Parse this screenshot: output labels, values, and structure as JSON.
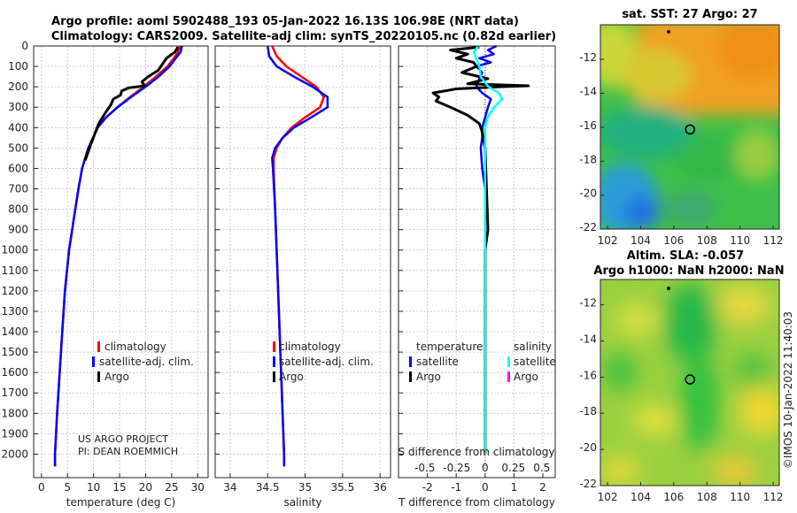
{
  "titles": {
    "line1": "Argo profile: aoml 5902488_193 05-Jan-2022 16.13S 106.98E (NRT data)",
    "line2": "Climatology: CARS2009. Satellite-adj clim: synTS_20220105.nc (0.82d earlier)"
  },
  "credit": "©IMOS 10-Jan-2022 11:40:03",
  "project": {
    "line1": "US ARGO PROJECT",
    "line2": "PI: DEAN ROEMMICH"
  },
  "colors": {
    "climatology": "#ff0000",
    "satellite": "#0000ff",
    "argo": "#000000",
    "sal_satellite": "#00ffff",
    "sal_argo": "#ff00ff",
    "grid": "#b8c0e0"
  },
  "chart_data": [
    {
      "type": "line",
      "xlabel": "temperature (deg C)",
      "ylabel": "",
      "xlim": [
        -1.5,
        32
      ],
      "ylim": [
        2115,
        0
      ],
      "xticks": [
        0,
        5,
        10,
        15,
        20,
        25,
        30
      ],
      "yticks": [
        0,
        100,
        200,
        300,
        400,
        500,
        600,
        700,
        800,
        900,
        1000,
        1100,
        1200,
        1300,
        1400,
        1500,
        1600,
        1700,
        1800,
        1900,
        2000
      ],
      "legend": [
        "climatology",
        "satellite-adj. clim.",
        "Argo"
      ],
      "series": [
        {
          "name": "climatology",
          "color": "#ff0000",
          "depth": [
            0,
            30,
            60,
            100,
            150,
            200,
            250,
            300,
            350,
            400,
            500,
            600,
            700,
            800,
            1000,
            1200,
            1400,
            1600,
            1800,
            2000,
            2060
          ],
          "values": [
            26.6,
            26.2,
            25.4,
            24.2,
            22.0,
            19.6,
            17.0,
            14.6,
            12.4,
            10.8,
            9.0,
            7.8,
            7.1,
            6.5,
            5.3,
            4.5,
            4.0,
            3.5,
            3.0,
            2.6,
            2.6
          ]
        },
        {
          "name": "satellite-adj. clim.",
          "color": "#0000ff",
          "depth": [
            0,
            30,
            60,
            100,
            150,
            200,
            250,
            300,
            350,
            400,
            500,
            600,
            700,
            800,
            1000,
            1200,
            1400,
            1600,
            1800,
            2000,
            2060
          ],
          "values": [
            27.0,
            26.7,
            25.8,
            24.6,
            22.5,
            20.0,
            17.2,
            14.6,
            12.4,
            10.8,
            9.0,
            7.8,
            7.1,
            6.5,
            5.3,
            4.5,
            4.0,
            3.5,
            3.0,
            2.6,
            2.6
          ]
        },
        {
          "name": "Argo",
          "color": "#000000",
          "depth": [
            5,
            30,
            60,
            90,
            120,
            150,
            175,
            195,
            205,
            220,
            240,
            260,
            290,
            330,
            380,
            420,
            480,
            560
          ],
          "values": [
            26.2,
            25.6,
            24.0,
            23.2,
            22.4,
            20.5,
            19.3,
            19.8,
            16.8,
            15.4,
            15.2,
            13.8,
            13.3,
            12.2,
            11.0,
            10.4,
            9.5,
            8.4
          ]
        }
      ]
    },
    {
      "type": "line",
      "xlabel": "salinity",
      "xlim": [
        33.8,
        36.14
      ],
      "ylim": [
        2115,
        0
      ],
      "xticks": [
        34,
        34.5,
        35,
        35.5,
        36
      ],
      "legend": [
        "climatology",
        "satellite-adj. clim.",
        "Argo"
      ],
      "series": [
        {
          "name": "climatology",
          "color": "#ff0000",
          "depth": [
            0,
            50,
            100,
            150,
            200,
            250,
            300,
            350,
            400,
            450,
            500,
            550,
            600,
            800,
            1000,
            1500,
            2000,
            2060
          ],
          "values": [
            34.56,
            34.62,
            34.75,
            34.95,
            35.15,
            35.25,
            35.2,
            35.0,
            34.82,
            34.7,
            34.62,
            34.58,
            34.58,
            34.6,
            34.62,
            34.67,
            34.72,
            34.72
          ]
        },
        {
          "name": "satellite-adj. clim.",
          "color": "#0000ff",
          "depth": [
            0,
            50,
            100,
            150,
            200,
            250,
            300,
            350,
            400,
            450,
            500,
            550,
            600,
            800,
            1000,
            1500,
            2000,
            2060
          ],
          "values": [
            34.5,
            34.52,
            34.62,
            34.85,
            35.1,
            35.3,
            35.3,
            35.08,
            34.85,
            34.7,
            34.6,
            34.56,
            34.57,
            34.6,
            34.62,
            34.67,
            34.72,
            34.72
          ]
        }
      ]
    },
    {
      "type": "line",
      "xlabel": "T difference from climatology",
      "x2label": "S difference from climatology",
      "xlim": [
        -3.0,
        2.43
      ],
      "ylim": [
        2115,
        0
      ],
      "xticks": [
        -2,
        -1,
        0,
        1,
        2
      ],
      "x2ticks": [
        -0.5,
        -0.25,
        0,
        0.25,
        0.5
      ],
      "x2tick_labels": [
        "-0.5",
        "-0.25",
        "0",
        "0.25",
        "0.5"
      ],
      "legend_headers": [
        "temperature",
        "salinity"
      ],
      "legend": [
        "satellite",
        "Argo",
        "satellite",
        "Argo"
      ],
      "series": [
        {
          "name": "T satellite",
          "color": "#0000ff",
          "depth": [
            0,
            20,
            40,
            60,
            80,
            100,
            130,
            160,
            200,
            230,
            260,
            300,
            350,
            400,
            450,
            500,
            600,
            700,
            800,
            1000,
            1500,
            2000
          ],
          "values": [
            0.4,
            0.1,
            0.3,
            -0.2,
            0.2,
            -0.3,
            -0.1,
            -0.2,
            -0.3,
            -0.1,
            0.2,
            0.1,
            0.0,
            -0.1,
            -0.1,
            -0.15,
            -0.1,
            0.0,
            0.0,
            0.0,
            0.0,
            0.0
          ]
        },
        {
          "name": "T Argo",
          "color": "#000000",
          "depth": [
            5,
            20,
            40,
            60,
            80,
            100,
            130,
            160,
            185,
            195,
            200,
            210,
            230,
            250,
            270,
            300,
            340,
            380,
            420,
            500,
            700,
            900,
            1000,
            1200,
            1500,
            2000
          ],
          "values": [
            -0.2,
            -1.2,
            -0.6,
            -1.0,
            -0.4,
            -0.3,
            -0.8,
            0.1,
            -0.6,
            1.5,
            0.5,
            -1.0,
            -1.8,
            -1.6,
            -1.7,
            -1.2,
            -0.6,
            -0.2,
            -0.1,
            0.0,
            0.05,
            0.1,
            0.0,
            0.0,
            0.0,
            0.0
          ]
        },
        {
          "name": "S satellite",
          "color": "#00ffff",
          "depth": [
            0,
            30,
            60,
            100,
            150,
            200,
            230,
            260,
            300,
            350,
            400,
            500,
            700,
            1000,
            2000
          ],
          "values": [
            -0.06,
            -0.1,
            -0.08,
            -0.05,
            -0.04,
            0.03,
            0.12,
            0.15,
            0.08,
            0.02,
            0.0,
            0.0,
            0.0,
            0.0,
            0.0
          ]
        }
      ]
    }
  ],
  "maps": [
    {
      "title": "sat. SST: 27 Argo: 27",
      "xticks": [
        102,
        104,
        106,
        108,
        110,
        112
      ],
      "yticks": [
        -12,
        -14,
        -16,
        -18,
        -20,
        -22
      ],
      "xlim": [
        101.57,
        112.37
      ],
      "ylim": [
        -9.96,
        -22
      ],
      "argo_position": [
        106.98,
        -16.13
      ]
    },
    {
      "title1": "Altim. SLA: -0.057",
      "title2": "Argo h1000: NaN h2000: NaN",
      "xticks": [
        102,
        104,
        106,
        108,
        110,
        112
      ],
      "yticks": [
        -12,
        -14,
        -16,
        -18,
        -20,
        -22
      ],
      "xlim": [
        101.57,
        112.37
      ],
      "ylim": [
        -10.6,
        -22
      ],
      "argo_position": [
        106.98,
        -16.13
      ]
    }
  ]
}
